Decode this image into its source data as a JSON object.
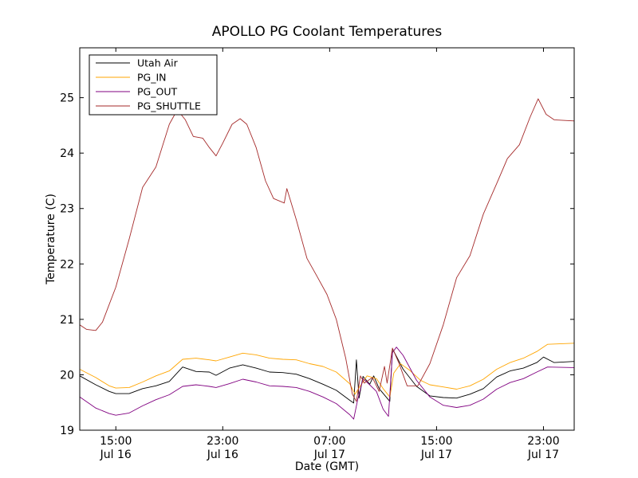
{
  "chart_data": {
    "type": "line",
    "title": "APOLLO PG Coolant Temperatures",
    "xlabel": "Date (GMT)",
    "ylabel": "Temperature (C)",
    "xlim": [
      -2.7,
      34.3
    ],
    "ylim": [
      19,
      25.9
    ],
    "yticks": [
      19,
      20,
      21,
      22,
      23,
      24,
      25
    ],
    "xticks": [
      {
        "x": 0,
        "line1": "15:00",
        "line2": "Jul 16"
      },
      {
        "x": 8,
        "line1": "23:00",
        "line2": "Jul 16"
      },
      {
        "x": 16,
        "line1": "07:00",
        "line2": "Jul 17"
      },
      {
        "x": 24,
        "line1": "15:00",
        "line2": "Jul 17"
      },
      {
        "x": 32,
        "line1": "23:00",
        "line2": "Jul 17"
      }
    ],
    "x_unit": "hours from Jul 16 15:00 GMT",
    "legend_position": "upper-left",
    "series": [
      {
        "name": "Utah Air",
        "color": "#000000",
        "points": [
          [
            -2.7,
            19.98
          ],
          [
            -1.5,
            19.82
          ],
          [
            -0.5,
            19.7
          ],
          [
            0,
            19.66
          ],
          [
            1,
            19.66
          ],
          [
            2,
            19.75
          ],
          [
            3,
            19.8
          ],
          [
            4,
            19.88
          ],
          [
            5,
            20.14
          ],
          [
            6,
            20.06
          ],
          [
            7,
            20.05
          ],
          [
            7.5,
            19.99
          ],
          [
            8.5,
            20.12
          ],
          [
            9.5,
            20.18
          ],
          [
            10.5,
            20.12
          ],
          [
            11.5,
            20.05
          ],
          [
            12.5,
            20.04
          ],
          [
            13.5,
            20.01
          ],
          [
            14.5,
            19.93
          ],
          [
            15.5,
            19.83
          ],
          [
            16.5,
            19.72
          ],
          [
            17.5,
            19.54
          ],
          [
            17.8,
            19.49
          ],
          [
            18,
            20.27
          ],
          [
            18.2,
            19.58
          ],
          [
            18.5,
            19.97
          ],
          [
            19,
            19.83
          ],
          [
            19.3,
            19.98
          ],
          [
            19.7,
            19.75
          ],
          [
            20.5,
            19.52
          ],
          [
            20.7,
            20.47
          ],
          [
            21.5,
            20.1
          ],
          [
            22.5,
            19.79
          ],
          [
            23.5,
            19.62
          ],
          [
            24.5,
            19.59
          ],
          [
            25.5,
            19.58
          ],
          [
            26.5,
            19.65
          ],
          [
            27.5,
            19.75
          ],
          [
            28.5,
            19.96
          ],
          [
            29.5,
            20.07
          ],
          [
            30.5,
            20.12
          ],
          [
            31.5,
            20.22
          ],
          [
            32,
            20.32
          ],
          [
            32.8,
            20.22
          ],
          [
            34.3,
            20.24
          ]
        ]
      },
      {
        "name": "PG_IN",
        "color": "#ffa500",
        "points": [
          [
            -2.7,
            20.1
          ],
          [
            -1.5,
            19.95
          ],
          [
            -0.5,
            19.8
          ],
          [
            0,
            19.76
          ],
          [
            1,
            19.77
          ],
          [
            2,
            19.87
          ],
          [
            3,
            19.98
          ],
          [
            4,
            20.07
          ],
          [
            5,
            20.28
          ],
          [
            6,
            20.3
          ],
          [
            7,
            20.27
          ],
          [
            7.5,
            20.25
          ],
          [
            8.5,
            20.32
          ],
          [
            9.5,
            20.39
          ],
          [
            10.5,
            20.36
          ],
          [
            11.5,
            20.3
          ],
          [
            12.5,
            20.28
          ],
          [
            13.5,
            20.27
          ],
          [
            14.5,
            20.2
          ],
          [
            15.5,
            20.15
          ],
          [
            16.5,
            20.05
          ],
          [
            17.5,
            19.84
          ],
          [
            17.9,
            19.65
          ],
          [
            18.3,
            19.8
          ],
          [
            18.8,
            19.98
          ],
          [
            19.5,
            19.93
          ],
          [
            20,
            19.75
          ],
          [
            20.5,
            19.6
          ],
          [
            20.8,
            20.03
          ],
          [
            21.3,
            20.2
          ],
          [
            22,
            20.08
          ],
          [
            22.8,
            19.9
          ],
          [
            23.5,
            19.82
          ],
          [
            24.5,
            19.78
          ],
          [
            25.5,
            19.74
          ],
          [
            26.5,
            19.8
          ],
          [
            27.5,
            19.92
          ],
          [
            28.5,
            20.1
          ],
          [
            29.5,
            20.22
          ],
          [
            30.5,
            20.3
          ],
          [
            31.5,
            20.42
          ],
          [
            32.3,
            20.55
          ],
          [
            34.3,
            20.57
          ]
        ]
      },
      {
        "name": "PG_OUT",
        "color": "#800080",
        "points": [
          [
            -2.7,
            19.6
          ],
          [
            -1.5,
            19.4
          ],
          [
            -0.5,
            19.3
          ],
          [
            0,
            19.27
          ],
          [
            1,
            19.31
          ],
          [
            2,
            19.44
          ],
          [
            3,
            19.55
          ],
          [
            4,
            19.64
          ],
          [
            5,
            19.79
          ],
          [
            6,
            19.82
          ],
          [
            7,
            19.79
          ],
          [
            7.5,
            19.77
          ],
          [
            8.5,
            19.84
          ],
          [
            9.5,
            19.92
          ],
          [
            10.5,
            19.87
          ],
          [
            11.5,
            19.8
          ],
          [
            12.5,
            19.79
          ],
          [
            13.5,
            19.77
          ],
          [
            14.5,
            19.7
          ],
          [
            15.5,
            19.6
          ],
          [
            16.5,
            19.48
          ],
          [
            17.5,
            19.28
          ],
          [
            17.8,
            19.2
          ],
          [
            18.1,
            19.55
          ],
          [
            18.5,
            19.93
          ],
          [
            19,
            19.82
          ],
          [
            19.5,
            19.7
          ],
          [
            20,
            19.38
          ],
          [
            20.4,
            19.25
          ],
          [
            20.7,
            20.4
          ],
          [
            21,
            20.5
          ],
          [
            21.5,
            20.35
          ],
          [
            22.5,
            19.9
          ],
          [
            23.5,
            19.6
          ],
          [
            24.5,
            19.45
          ],
          [
            25.5,
            19.41
          ],
          [
            26.5,
            19.45
          ],
          [
            27.5,
            19.56
          ],
          [
            28.5,
            19.74
          ],
          [
            29.5,
            19.86
          ],
          [
            30.5,
            19.93
          ],
          [
            31.5,
            20.05
          ],
          [
            32.3,
            20.14
          ],
          [
            34.3,
            20.13
          ]
        ]
      },
      {
        "name": "PG_SHUTTLE",
        "color": "#a52a2a",
        "points": [
          [
            -2.7,
            20.9
          ],
          [
            -2.2,
            20.82
          ],
          [
            -1.5,
            20.8
          ],
          [
            -1,
            20.95
          ],
          [
            0,
            21.58
          ],
          [
            1,
            22.45
          ],
          [
            2,
            23.38
          ],
          [
            3,
            23.75
          ],
          [
            4,
            24.52
          ],
          [
            4.6,
            24.78
          ],
          [
            5.2,
            24.6
          ],
          [
            5.8,
            24.3
          ],
          [
            6.5,
            24.27
          ],
          [
            7,
            24.1
          ],
          [
            7.5,
            23.95
          ],
          [
            8,
            24.18
          ],
          [
            8.7,
            24.52
          ],
          [
            9.3,
            24.62
          ],
          [
            9.8,
            24.52
          ],
          [
            10.5,
            24.1
          ],
          [
            11.2,
            23.5
          ],
          [
            11.8,
            23.18
          ],
          [
            12.6,
            23.1
          ],
          [
            12.8,
            23.36
          ],
          [
            13.5,
            22.8
          ],
          [
            14.3,
            22.1
          ],
          [
            15,
            21.8
          ],
          [
            15.8,
            21.45
          ],
          [
            16.5,
            21.0
          ],
          [
            17.2,
            20.3
          ],
          [
            17.7,
            19.65
          ],
          [
            18,
            19.52
          ],
          [
            18.3,
            19.98
          ],
          [
            18.6,
            19.85
          ],
          [
            19.2,
            19.95
          ],
          [
            19.7,
            19.7
          ],
          [
            20.1,
            20.15
          ],
          [
            20.3,
            19.85
          ],
          [
            20.7,
            20.48
          ],
          [
            21.2,
            20.2
          ],
          [
            21.8,
            19.8
          ],
          [
            22.6,
            19.8
          ],
          [
            23.5,
            20.2
          ],
          [
            24.5,
            20.9
          ],
          [
            25.5,
            21.75
          ],
          [
            26.5,
            22.15
          ],
          [
            27.5,
            22.9
          ],
          [
            28.5,
            23.45
          ],
          [
            29.3,
            23.9
          ],
          [
            30.2,
            24.15
          ],
          [
            31,
            24.65
          ],
          [
            31.6,
            24.98
          ],
          [
            32.2,
            24.7
          ],
          [
            32.8,
            24.6
          ],
          [
            34.3,
            24.58
          ]
        ]
      }
    ]
  }
}
